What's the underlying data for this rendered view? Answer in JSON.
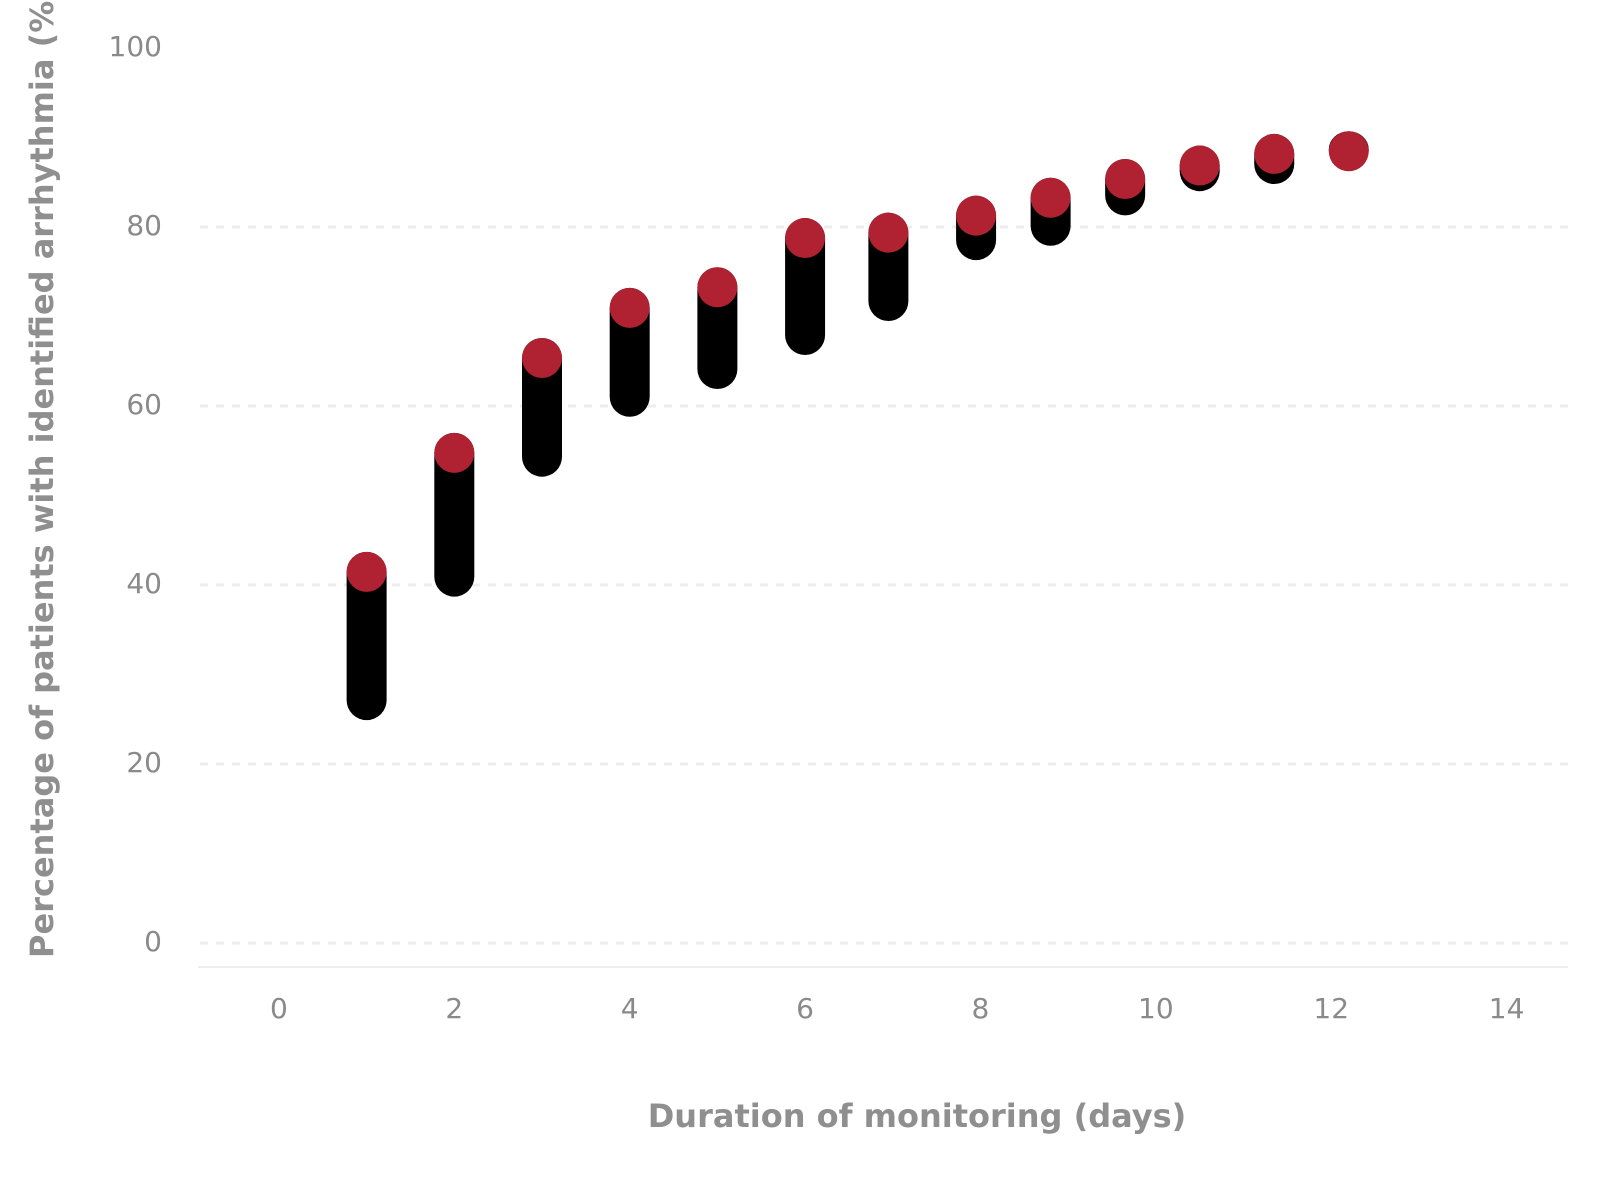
{
  "chart_data": {
    "type": "range",
    "xlabel": "Duration of monitoring (days)",
    "ylabel": "Percentage of patients with identified arrhythmia (%)",
    "x": [
      1,
      2,
      3,
      4,
      5,
      6,
      6.95,
      7.95,
      8.8,
      9.65,
      10.5,
      11.35,
      12.2
    ],
    "low": [
      24.9,
      38.7,
      52.1,
      58.8,
      61.9,
      65.7,
      69.5,
      76.3,
      77.9,
      81.3,
      84.0,
      84.8,
      86.6
    ],
    "high": [
      43.7,
      57.0,
      67.6,
      73.2,
      75.5,
      81.0,
      81.6,
      83.5,
      85.5,
      87.6,
      89.1,
      90.4,
      90.7
    ],
    "bar_color": "#000000",
    "cap_color": "#b02231",
    "xlim": [
      -0.9,
      14.7
    ],
    "xticks": [
      0,
      2,
      4,
      6,
      8,
      10,
      12,
      14
    ],
    "ylim": [
      0,
      100
    ],
    "yticks": [
      0,
      20,
      40,
      60,
      80,
      100
    ],
    "grid": true
  }
}
